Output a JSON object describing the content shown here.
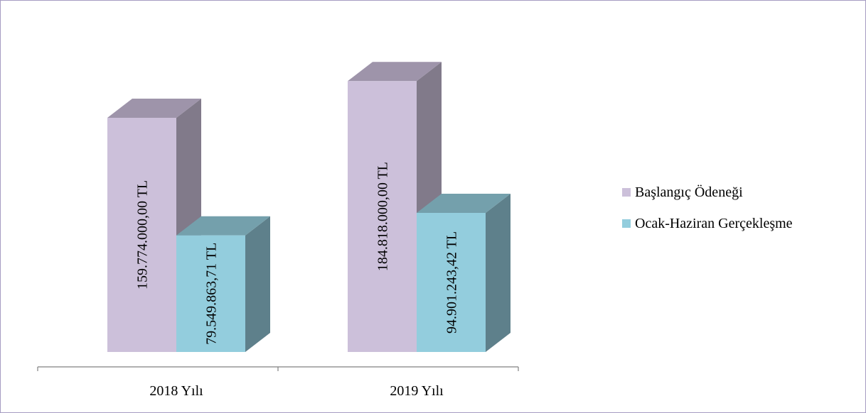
{
  "chart_data": {
    "type": "bar",
    "categories": [
      "2018 Yılı",
      "2019 Yılı"
    ],
    "series": [
      {
        "name": "Başlangıç Ödeneği",
        "values": [
          159774000.0,
          184818000.0
        ],
        "labels": [
          "159.774.000,00 TL",
          "184.818.000,00 TL"
        ]
      },
      {
        "name": "Ocak-Haziran Gerçekleşme",
        "values": [
          79549863.71,
          94901243.42
        ],
        "labels": [
          "79.549.863,71 TL",
          "94.901.243,42 TL"
        ]
      }
    ],
    "colors": {
      "series0": {
        "front": "#ccc0da",
        "side": "#817a8a",
        "top": "#9e94aa"
      },
      "series1": {
        "front": "#93cddd",
        "side": "#5e808b",
        "top": "#74a0ac"
      }
    },
    "legend_position": "right",
    "grid": false
  }
}
